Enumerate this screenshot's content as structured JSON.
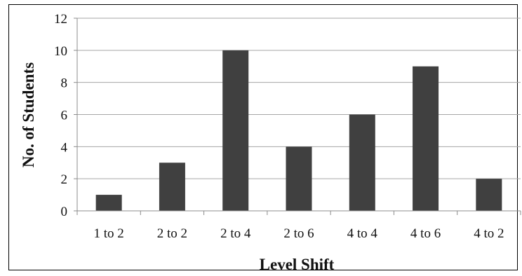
{
  "chart_data": {
    "type": "bar",
    "title": "",
    "xlabel": "Level Shift",
    "ylabel": "No. of Students",
    "categories": [
      "1 to 2",
      "2 to 2",
      "2 to 4",
      "2 to 6",
      "4 to 4",
      "4 to 6",
      "4 to 2"
    ],
    "values": [
      1,
      3,
      10,
      4,
      6,
      9,
      2
    ],
    "ylim": [
      0,
      12
    ],
    "yticks": [
      0,
      2,
      4,
      6,
      8,
      10,
      12
    ],
    "grid": true,
    "legend": "none",
    "colors": {
      "bar": "#404040",
      "grid": "#a6a6a6",
      "axis": "#8c8c8c",
      "text": "#111111"
    }
  }
}
